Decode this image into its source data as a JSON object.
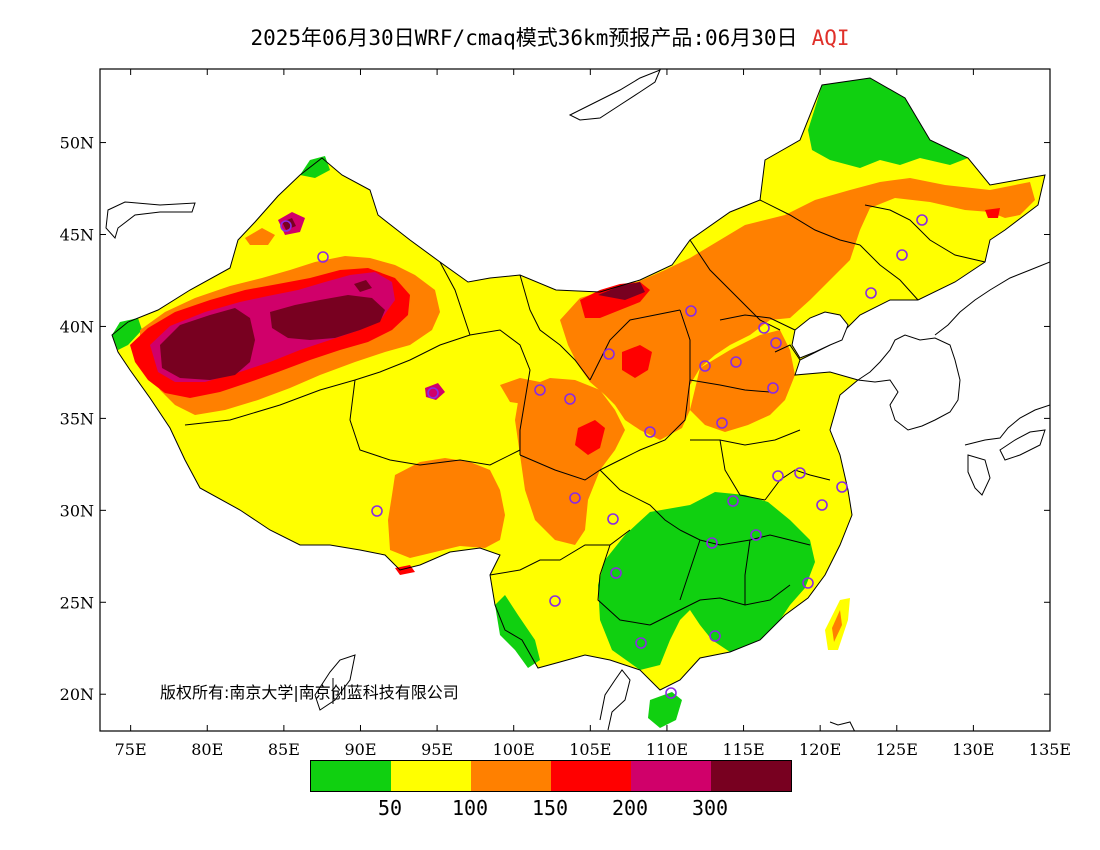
{
  "title": {
    "main": "2025年06月30日WRF/cmaq模式36km预报产品:06月30日",
    "variable": "AQI",
    "variable_color": "#e0302a"
  },
  "axes": {
    "x_ticks": [
      "75E",
      "80E",
      "85E",
      "90E",
      "95E",
      "100E",
      "105E",
      "110E",
      "115E",
      "120E",
      "125E",
      "130E",
      "135E"
    ],
    "y_ticks": [
      "50N",
      "45N",
      "40N",
      "35N",
      "30N",
      "25N",
      "20N"
    ],
    "lon_range": [
      73,
      135
    ],
    "lat_range": [
      18,
      54
    ]
  },
  "copyright": "版权所有:南京大学|南京创蓝科技有限公司",
  "legend": {
    "colors": [
      "#10d010",
      "#ffff00",
      "#ff8000",
      "#ff0000",
      "#d0006a",
      "#780020"
    ],
    "labels": [
      "50",
      "100",
      "150",
      "200",
      "300"
    ]
  },
  "palette": {
    "good": "#10d010",
    "moderate": "#ffff00",
    "usg": "#ff8000",
    "unhealthy": "#ff0000",
    "very_unhealthy": "#d0006a",
    "hazardous": "#780020",
    "station": "#8a2be2"
  }
}
